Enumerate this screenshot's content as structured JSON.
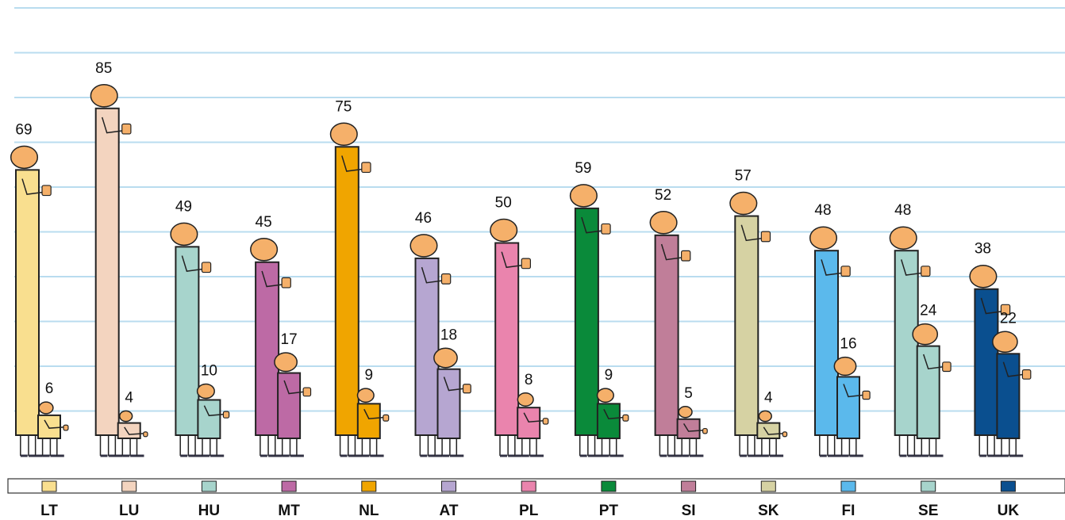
{
  "chart_data": {
    "type": "bar",
    "categories": [
      "LT",
      "LU",
      "HU",
      "MT",
      "NL",
      "AT",
      "PL",
      "PT",
      "SI",
      "SK",
      "FI",
      "SE",
      "UK"
    ],
    "colors": [
      "#f9df8f",
      "#f3d4bf",
      "#a7d4cc",
      "#bd6aa5",
      "#f0a500",
      "#b6a6d1",
      "#ea84ad",
      "#0a8a3a",
      "#c07e99",
      "#d6d2a3",
      "#5bb9ec",
      "#a7d4cc",
      "#0a4f8f"
    ],
    "series": [
      {
        "values": [
          69,
          85,
          49,
          45,
          75,
          46,
          50,
          59,
          52,
          57,
          48,
          48,
          38
        ]
      },
      {
        "values": [
          6,
          4,
          10,
          17,
          9,
          18,
          8,
          9,
          5,
          4,
          16,
          24,
          22
        ]
      }
    ],
    "ylim": [
      0,
      100
    ],
    "grid": true
  }
}
